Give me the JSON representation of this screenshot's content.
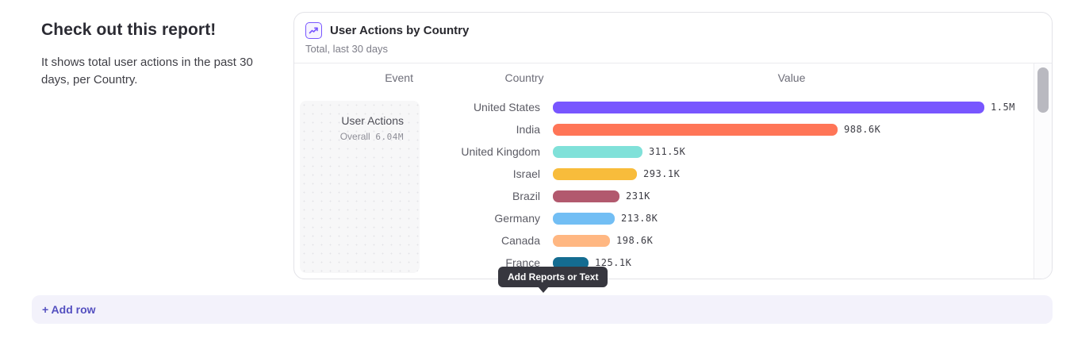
{
  "page": {
    "heading": "Check out this report!",
    "description": "It shows total user actions in the past 30 days, per Country.",
    "tooltip_label": "Add Reports or Text",
    "add_row_label": "+ Add row"
  },
  "card": {
    "title": "User Actions by Country",
    "subtitle": "Total, last 30 days",
    "icon": "line-chart-icon",
    "columns": {
      "event": "Event",
      "country": "Country",
      "value": "Value"
    },
    "event_cell": {
      "name": "User Actions",
      "overall_label": "Overall",
      "overall_value": "6.04M"
    }
  },
  "chart_data": {
    "type": "bar",
    "orientation": "horizontal",
    "title": "User Actions by Country",
    "subtitle": "Total, last 30 days",
    "categories": [
      "United States",
      "India",
      "United Kingdom",
      "Israel",
      "Brazil",
      "Germany",
      "Canada",
      "France"
    ],
    "values": [
      1500000,
      988600,
      311500,
      293100,
      231000,
      213800,
      198600,
      125100
    ],
    "value_labels": [
      "1.5M",
      "988.6K",
      "311.5K",
      "293.1K",
      "231K",
      "213.8K",
      "198.6K",
      "125.1K"
    ],
    "bar_colors": [
      "#7856FF",
      "#FF7557",
      "#80E1D9",
      "#F8BC3B",
      "#B2596E",
      "#72BEF4",
      "#FFB782",
      "#146C91"
    ],
    "xlim": [
      0,
      1500000
    ],
    "legend": "none",
    "grid": "off"
  },
  "colors": {
    "accent_purple": "#7856FF",
    "tooltip_bg": "#37373f",
    "add_row_bg": "#f3f2fb",
    "add_row_text": "#5450c0",
    "card_border": "#e3e3e8"
  }
}
